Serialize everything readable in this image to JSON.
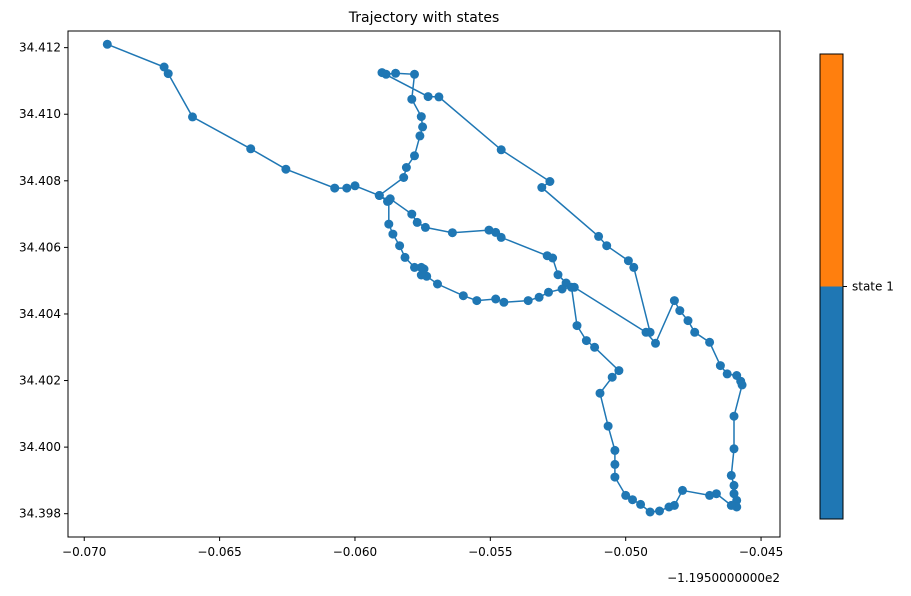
{
  "chart_data": {
    "type": "line",
    "title": "Trajectory with states",
    "xlabel": "",
    "ylabel": "",
    "x_offset_label": "−1.1950000000e2",
    "xlim": [
      -0.0706,
      -0.0443
    ],
    "ylim": [
      34.3973,
      34.4125
    ],
    "x_ticks": [
      -0.07,
      -0.065,
      -0.06,
      -0.055,
      -0.05,
      -0.045
    ],
    "x_tick_labels": [
      "−0.070",
      "−0.065",
      "−0.060",
      "−0.055",
      "−0.050",
      "−0.045"
    ],
    "y_ticks": [
      34.398,
      34.4,
      34.402,
      34.404,
      34.406,
      34.408,
      34.41,
      34.412
    ],
    "y_tick_labels": [
      "34.398",
      "34.400",
      "34.402",
      "34.404",
      "34.406",
      "34.408",
      "34.410",
      "34.412"
    ],
    "grid": false,
    "series": [
      {
        "color": "#1f77b4",
        "marker": "circle",
        "points": [
          [
            -0.06915,
            34.4121
          ],
          [
            -0.06705,
            34.41142
          ],
          [
            -0.0669,
            34.41122
          ],
          [
            -0.066,
            34.40992
          ],
          [
            -0.06385,
            34.40896
          ],
          [
            -0.06255,
            34.40835
          ],
          [
            -0.06075,
            34.40778
          ],
          [
            -0.0603,
            34.40778
          ],
          [
            -0.06,
            34.40785
          ],
          [
            -0.0591,
            34.40756
          ],
          [
            -0.0588,
            34.40738
          ],
          [
            -0.0587,
            34.40746
          ],
          [
            -0.0579,
            34.407
          ],
          [
            -0.0577,
            34.40675
          ],
          [
            -0.0574,
            34.4066
          ],
          [
            -0.0564,
            34.40644
          ],
          [
            -0.05505,
            34.40652
          ],
          [
            -0.0548,
            34.40645
          ],
          [
            -0.0546,
            34.4063
          ],
          [
            -0.0529,
            34.40575
          ],
          [
            -0.0527,
            34.40568
          ],
          [
            -0.0525,
            34.40518
          ],
          [
            -0.0522,
            34.40493
          ],
          [
            -0.0519,
            34.4048
          ],
          [
            -0.04925,
            34.40345
          ],
          [
            -0.0489,
            34.40312
          ],
          [
            -0.0482,
            34.4044
          ],
          [
            -0.048,
            34.4041
          ],
          [
            -0.0477,
            34.4038
          ],
          [
            -0.04745,
            34.40345
          ],
          [
            -0.0469,
            34.40315
          ],
          [
            -0.0465,
            34.40245
          ],
          [
            -0.04625,
            34.4022
          ],
          [
            -0.0459,
            34.40215
          ],
          [
            -0.04575,
            34.40198
          ],
          [
            -0.0457,
            34.40187
          ],
          [
            -0.046,
            34.40093
          ],
          [
            -0.046,
            34.39995
          ],
          [
            -0.0461,
            34.39915
          ],
          [
            -0.046,
            34.39885
          ],
          [
            -0.046,
            34.3986
          ],
          [
            -0.0459,
            34.3984
          ],
          [
            -0.0459,
            34.3982
          ],
          [
            -0.0461,
            34.39825
          ],
          [
            -0.04665,
            34.3986
          ],
          [
            -0.0469,
            34.39855
          ],
          [
            -0.0479,
            34.3987
          ],
          [
            -0.0482,
            34.39825
          ],
          [
            -0.0484,
            34.3982
          ],
          [
            -0.04875,
            34.39808
          ],
          [
            -0.0491,
            34.39805
          ],
          [
            -0.04945,
            34.39828
          ],
          [
            -0.04975,
            34.39842
          ],
          [
            -0.05,
            34.39855
          ],
          [
            -0.0504,
            34.3991
          ],
          [
            -0.0504,
            34.39948
          ],
          [
            -0.0504,
            34.3999
          ],
          [
            -0.05065,
            34.40063
          ],
          [
            -0.05095,
            34.40162
          ],
          [
            -0.0505,
            34.4021
          ],
          [
            -0.05025,
            34.4023
          ],
          [
            -0.05115,
            34.403
          ],
          [
            -0.05145,
            34.4032
          ],
          [
            -0.0518,
            34.40365
          ],
          [
            -0.052,
            34.4048
          ],
          [
            -0.05235,
            34.40475
          ],
          [
            -0.05285,
            34.40465
          ],
          [
            -0.0532,
            34.4045
          ],
          [
            -0.0536,
            34.4044
          ],
          [
            -0.0545,
            34.40435
          ],
          [
            -0.0548,
            34.40445
          ],
          [
            -0.0555,
            34.4044
          ],
          [
            -0.056,
            34.40455
          ],
          [
            -0.05695,
            34.4049
          ],
          [
            -0.05735,
            34.40513
          ],
          [
            -0.05755,
            34.40517
          ],
          [
            -0.05745,
            34.40535
          ],
          [
            -0.05755,
            34.4054
          ],
          [
            -0.0578,
            34.4054
          ],
          [
            -0.05815,
            34.4057
          ],
          [
            -0.05835,
            34.40605
          ],
          [
            -0.0586,
            34.4064
          ],
          [
            -0.05875,
            34.4067
          ],
          [
            -0.05875,
            34.4074
          ],
          [
            -0.0591,
            34.40756
          ],
          [
            -0.0582,
            34.4081
          ],
          [
            -0.0581,
            34.4084
          ],
          [
            -0.0578,
            34.40875
          ],
          [
            -0.0576,
            34.40935
          ],
          [
            -0.0575,
            34.40962
          ],
          [
            -0.05755,
            34.40993
          ],
          [
            -0.0579,
            34.41045
          ],
          [
            -0.0578,
            34.4112
          ],
          [
            -0.0585,
            34.41123
          ],
          [
            -0.05885,
            34.4112
          ],
          [
            -0.059,
            34.41125
          ],
          [
            -0.0573,
            34.41053
          ],
          [
            -0.0569,
            34.41052
          ],
          [
            -0.0546,
            34.40893
          ],
          [
            -0.0528,
            34.40798
          ],
          [
            -0.0531,
            34.4078
          ],
          [
            -0.051,
            34.40633
          ],
          [
            -0.0507,
            34.40605
          ],
          [
            -0.0499,
            34.4056
          ],
          [
            -0.0497,
            34.4054
          ],
          [
            -0.0491,
            34.40345
          ]
        ]
      }
    ],
    "colorbar": {
      "segments": [
        {
          "color": "#1f77b4",
          "from": 0.0,
          "to": 0.5
        },
        {
          "color": "#ff7f0e",
          "from": 0.5,
          "to": 1.0
        }
      ],
      "tick_label": "state 1",
      "tick_position": 0.5
    }
  }
}
